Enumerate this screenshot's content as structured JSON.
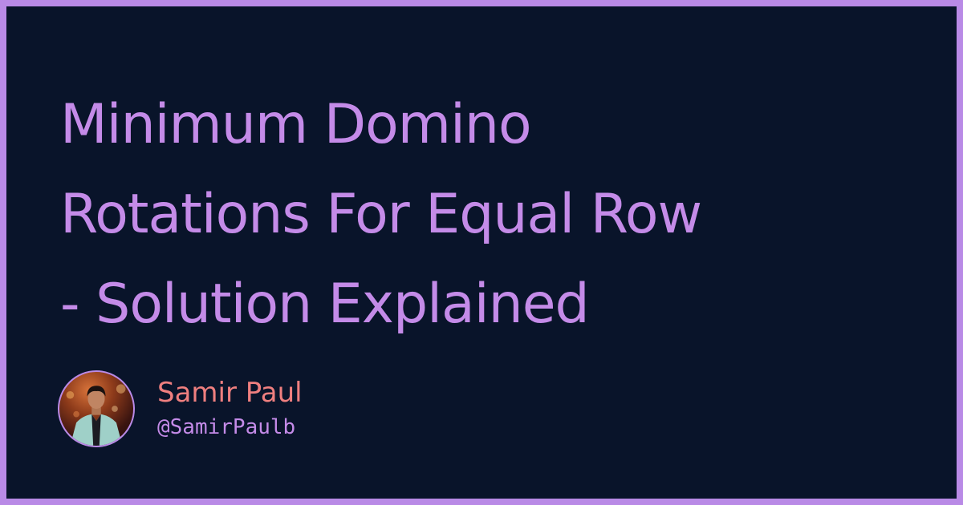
{
  "title": {
    "lines": [
      "Minimum Domino",
      "Rotations For Equal Row",
      "- Solution Explained"
    ]
  },
  "author": {
    "name": "Samir Paul",
    "handle": "@SamirPaulb",
    "avatar_icon": "person-photo-avatar"
  },
  "colors": {
    "frame": "#b98ae6",
    "background": "#09142a",
    "title": "#c48be8",
    "name": "#ef7f7f",
    "handle": "#c48be8"
  }
}
